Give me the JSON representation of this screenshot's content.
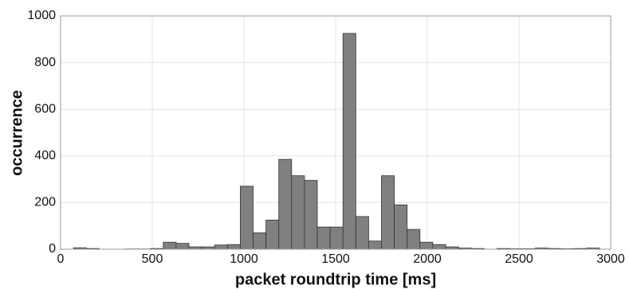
{
  "chart_data": {
    "type": "histogram",
    "xlabel": "packet roundtrip time [ms]",
    "ylabel": "occurrence",
    "bins": [
      0,
      70,
      140,
      210,
      280,
      350,
      420,
      490,
      560,
      630,
      700,
      770,
      840,
      910,
      980,
      1050,
      1120,
      1190,
      1260,
      1330,
      1400,
      1470,
      1540,
      1610,
      1680,
      1750,
      1820,
      1890,
      1960,
      2030,
      2100,
      2170,
      2240,
      2310,
      2380,
      2450,
      2520,
      2590,
      2660,
      2730,
      2800,
      2870,
      2940
    ],
    "values": [
      0,
      6,
      3,
      0,
      0,
      1,
      1,
      3,
      30,
      25,
      10,
      10,
      18,
      20,
      270,
      70,
      125,
      385,
      315,
      295,
      95,
      95,
      925,
      140,
      35,
      315,
      190,
      85,
      30,
      20,
      10,
      5,
      3,
      0,
      3,
      2,
      2,
      5,
      3,
      2,
      3,
      5
    ],
    "color": "#808080",
    "xlim": [
      0,
      3000
    ],
    "xticks": [
      0,
      500,
      1000,
      1500,
      2000,
      2500,
      3000
    ],
    "ylim": [
      0,
      1000
    ],
    "yticks": [
      0,
      200,
      400,
      600,
      800,
      1000
    ],
    "grid": true
  }
}
